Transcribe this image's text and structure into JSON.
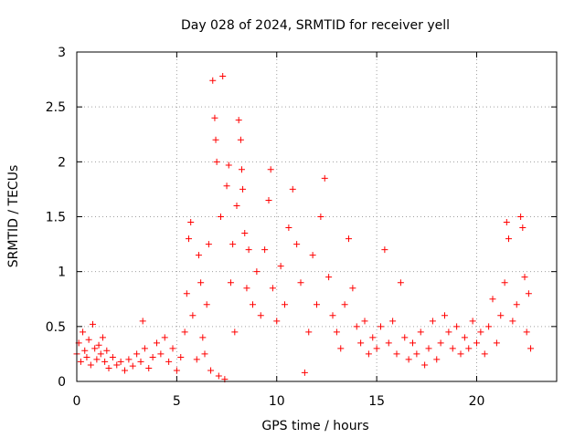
{
  "chart_data": {
    "type": "scatter",
    "title": "Day 028 of 2024, SRMTID for receiver yell",
    "xlabel": "GPS time / hours",
    "ylabel": "SRMTID / TECUs",
    "xlim": [
      0,
      24
    ],
    "ylim": [
      0,
      3
    ],
    "xticks": [
      0,
      5,
      10,
      15,
      20
    ],
    "xtick_labels": [
      "0",
      "5",
      "10",
      "15",
      "20"
    ],
    "yticks": [
      0,
      0.5,
      1,
      1.5,
      2,
      2.5,
      3
    ],
    "ytick_labels": [
      "0",
      "0.5",
      "1",
      "1.5",
      "2",
      "2.5",
      "3"
    ],
    "grid": true,
    "marker": "+",
    "color": "#ff0000",
    "series": [
      {
        "name": "SRMTID",
        "points": [
          [
            0.0,
            0.25
          ],
          [
            0.1,
            0.35
          ],
          [
            0.2,
            0.18
          ],
          [
            0.3,
            0.45
          ],
          [
            0.4,
            0.28
          ],
          [
            0.5,
            0.22
          ],
          [
            0.6,
            0.38
          ],
          [
            0.7,
            0.15
          ],
          [
            0.8,
            0.52
          ],
          [
            0.9,
            0.3
          ],
          [
            1.0,
            0.2
          ],
          [
            1.1,
            0.33
          ],
          [
            1.2,
            0.25
          ],
          [
            1.3,
            0.4
          ],
          [
            1.4,
            0.18
          ],
          [
            1.5,
            0.28
          ],
          [
            1.6,
            0.12
          ],
          [
            1.8,
            0.22
          ],
          [
            2.0,
            0.15
          ],
          [
            2.2,
            0.18
          ],
          [
            2.4,
            0.1
          ],
          [
            2.6,
            0.2
          ],
          [
            2.8,
            0.14
          ],
          [
            3.0,
            0.25
          ],
          [
            3.2,
            0.18
          ],
          [
            3.3,
            0.55
          ],
          [
            3.4,
            0.3
          ],
          [
            3.6,
            0.12
          ],
          [
            3.8,
            0.22
          ],
          [
            4.0,
            0.35
          ],
          [
            4.2,
            0.25
          ],
          [
            4.4,
            0.4
          ],
          [
            4.6,
            0.18
          ],
          [
            4.8,
            0.3
          ],
          [
            5.0,
            0.1
          ],
          [
            5.2,
            0.22
          ],
          [
            5.4,
            0.45
          ],
          [
            5.5,
            0.8
          ],
          [
            5.6,
            1.3
          ],
          [
            5.7,
            1.45
          ],
          [
            5.8,
            0.6
          ],
          [
            6.0,
            0.2
          ],
          [
            6.1,
            1.15
          ],
          [
            6.2,
            0.9
          ],
          [
            6.3,
            0.4
          ],
          [
            6.4,
            0.25
          ],
          [
            6.5,
            0.7
          ],
          [
            6.6,
            1.25
          ],
          [
            6.7,
            0.1
          ],
          [
            6.8,
            2.74
          ],
          [
            6.9,
            2.4
          ],
          [
            6.95,
            2.2
          ],
          [
            7.0,
            2.0
          ],
          [
            7.1,
            0.05
          ],
          [
            7.2,
            1.5
          ],
          [
            7.3,
            2.78
          ],
          [
            7.4,
            0.02
          ],
          [
            7.5,
            1.78
          ],
          [
            7.6,
            1.97
          ],
          [
            7.7,
            0.9
          ],
          [
            7.8,
            1.25
          ],
          [
            7.9,
            0.45
          ],
          [
            8.0,
            1.6
          ],
          [
            8.1,
            2.38
          ],
          [
            8.2,
            2.2
          ],
          [
            8.25,
            1.93
          ],
          [
            8.3,
            1.75
          ],
          [
            8.4,
            1.35
          ],
          [
            8.5,
            0.85
          ],
          [
            8.6,
            1.2
          ],
          [
            8.8,
            0.7
          ],
          [
            9.0,
            1.0
          ],
          [
            9.2,
            0.6
          ],
          [
            9.4,
            1.2
          ],
          [
            9.6,
            1.65
          ],
          [
            9.7,
            1.93
          ],
          [
            9.8,
            0.85
          ],
          [
            10.0,
            0.55
          ],
          [
            10.2,
            1.05
          ],
          [
            10.4,
            0.7
          ],
          [
            10.6,
            1.4
          ],
          [
            10.8,
            1.75
          ],
          [
            11.0,
            1.25
          ],
          [
            11.2,
            0.9
          ],
          [
            11.4,
            0.08
          ],
          [
            11.6,
            0.45
          ],
          [
            11.8,
            1.15
          ],
          [
            12.0,
            0.7
          ],
          [
            12.2,
            1.5
          ],
          [
            12.4,
            1.85
          ],
          [
            12.6,
            0.95
          ],
          [
            12.8,
            0.6
          ],
          [
            13.0,
            0.45
          ],
          [
            13.2,
            0.3
          ],
          [
            13.4,
            0.7
          ],
          [
            13.6,
            1.3
          ],
          [
            13.8,
            0.85
          ],
          [
            14.0,
            0.5
          ],
          [
            14.2,
            0.35
          ],
          [
            14.4,
            0.55
          ],
          [
            14.6,
            0.25
          ],
          [
            14.8,
            0.4
          ],
          [
            15.0,
            0.3
          ],
          [
            15.2,
            0.5
          ],
          [
            15.4,
            1.2
          ],
          [
            15.6,
            0.35
          ],
          [
            15.8,
            0.55
          ],
          [
            16.0,
            0.25
          ],
          [
            16.2,
            0.9
          ],
          [
            16.4,
            0.4
          ],
          [
            16.6,
            0.2
          ],
          [
            16.8,
            0.35
          ],
          [
            17.0,
            0.25
          ],
          [
            17.2,
            0.45
          ],
          [
            17.4,
            0.15
          ],
          [
            17.6,
            0.3
          ],
          [
            17.8,
            0.55
          ],
          [
            18.0,
            0.2
          ],
          [
            18.2,
            0.35
          ],
          [
            18.4,
            0.6
          ],
          [
            18.6,
            0.45
          ],
          [
            18.8,
            0.3
          ],
          [
            19.0,
            0.5
          ],
          [
            19.2,
            0.25
          ],
          [
            19.4,
            0.4
          ],
          [
            19.6,
            0.3
          ],
          [
            19.8,
            0.55
          ],
          [
            20.0,
            0.35
          ],
          [
            20.2,
            0.45
          ],
          [
            20.4,
            0.25
          ],
          [
            20.6,
            0.5
          ],
          [
            20.8,
            0.75
          ],
          [
            21.0,
            0.35
          ],
          [
            21.2,
            0.6
          ],
          [
            21.4,
            0.9
          ],
          [
            21.5,
            1.45
          ],
          [
            21.6,
            1.3
          ],
          [
            21.8,
            0.55
          ],
          [
            22.0,
            0.7
          ],
          [
            22.2,
            1.5
          ],
          [
            22.3,
            1.4
          ],
          [
            22.4,
            0.95
          ],
          [
            22.5,
            0.45
          ],
          [
            22.6,
            0.8
          ],
          [
            22.7,
            0.3
          ]
        ]
      }
    ]
  }
}
